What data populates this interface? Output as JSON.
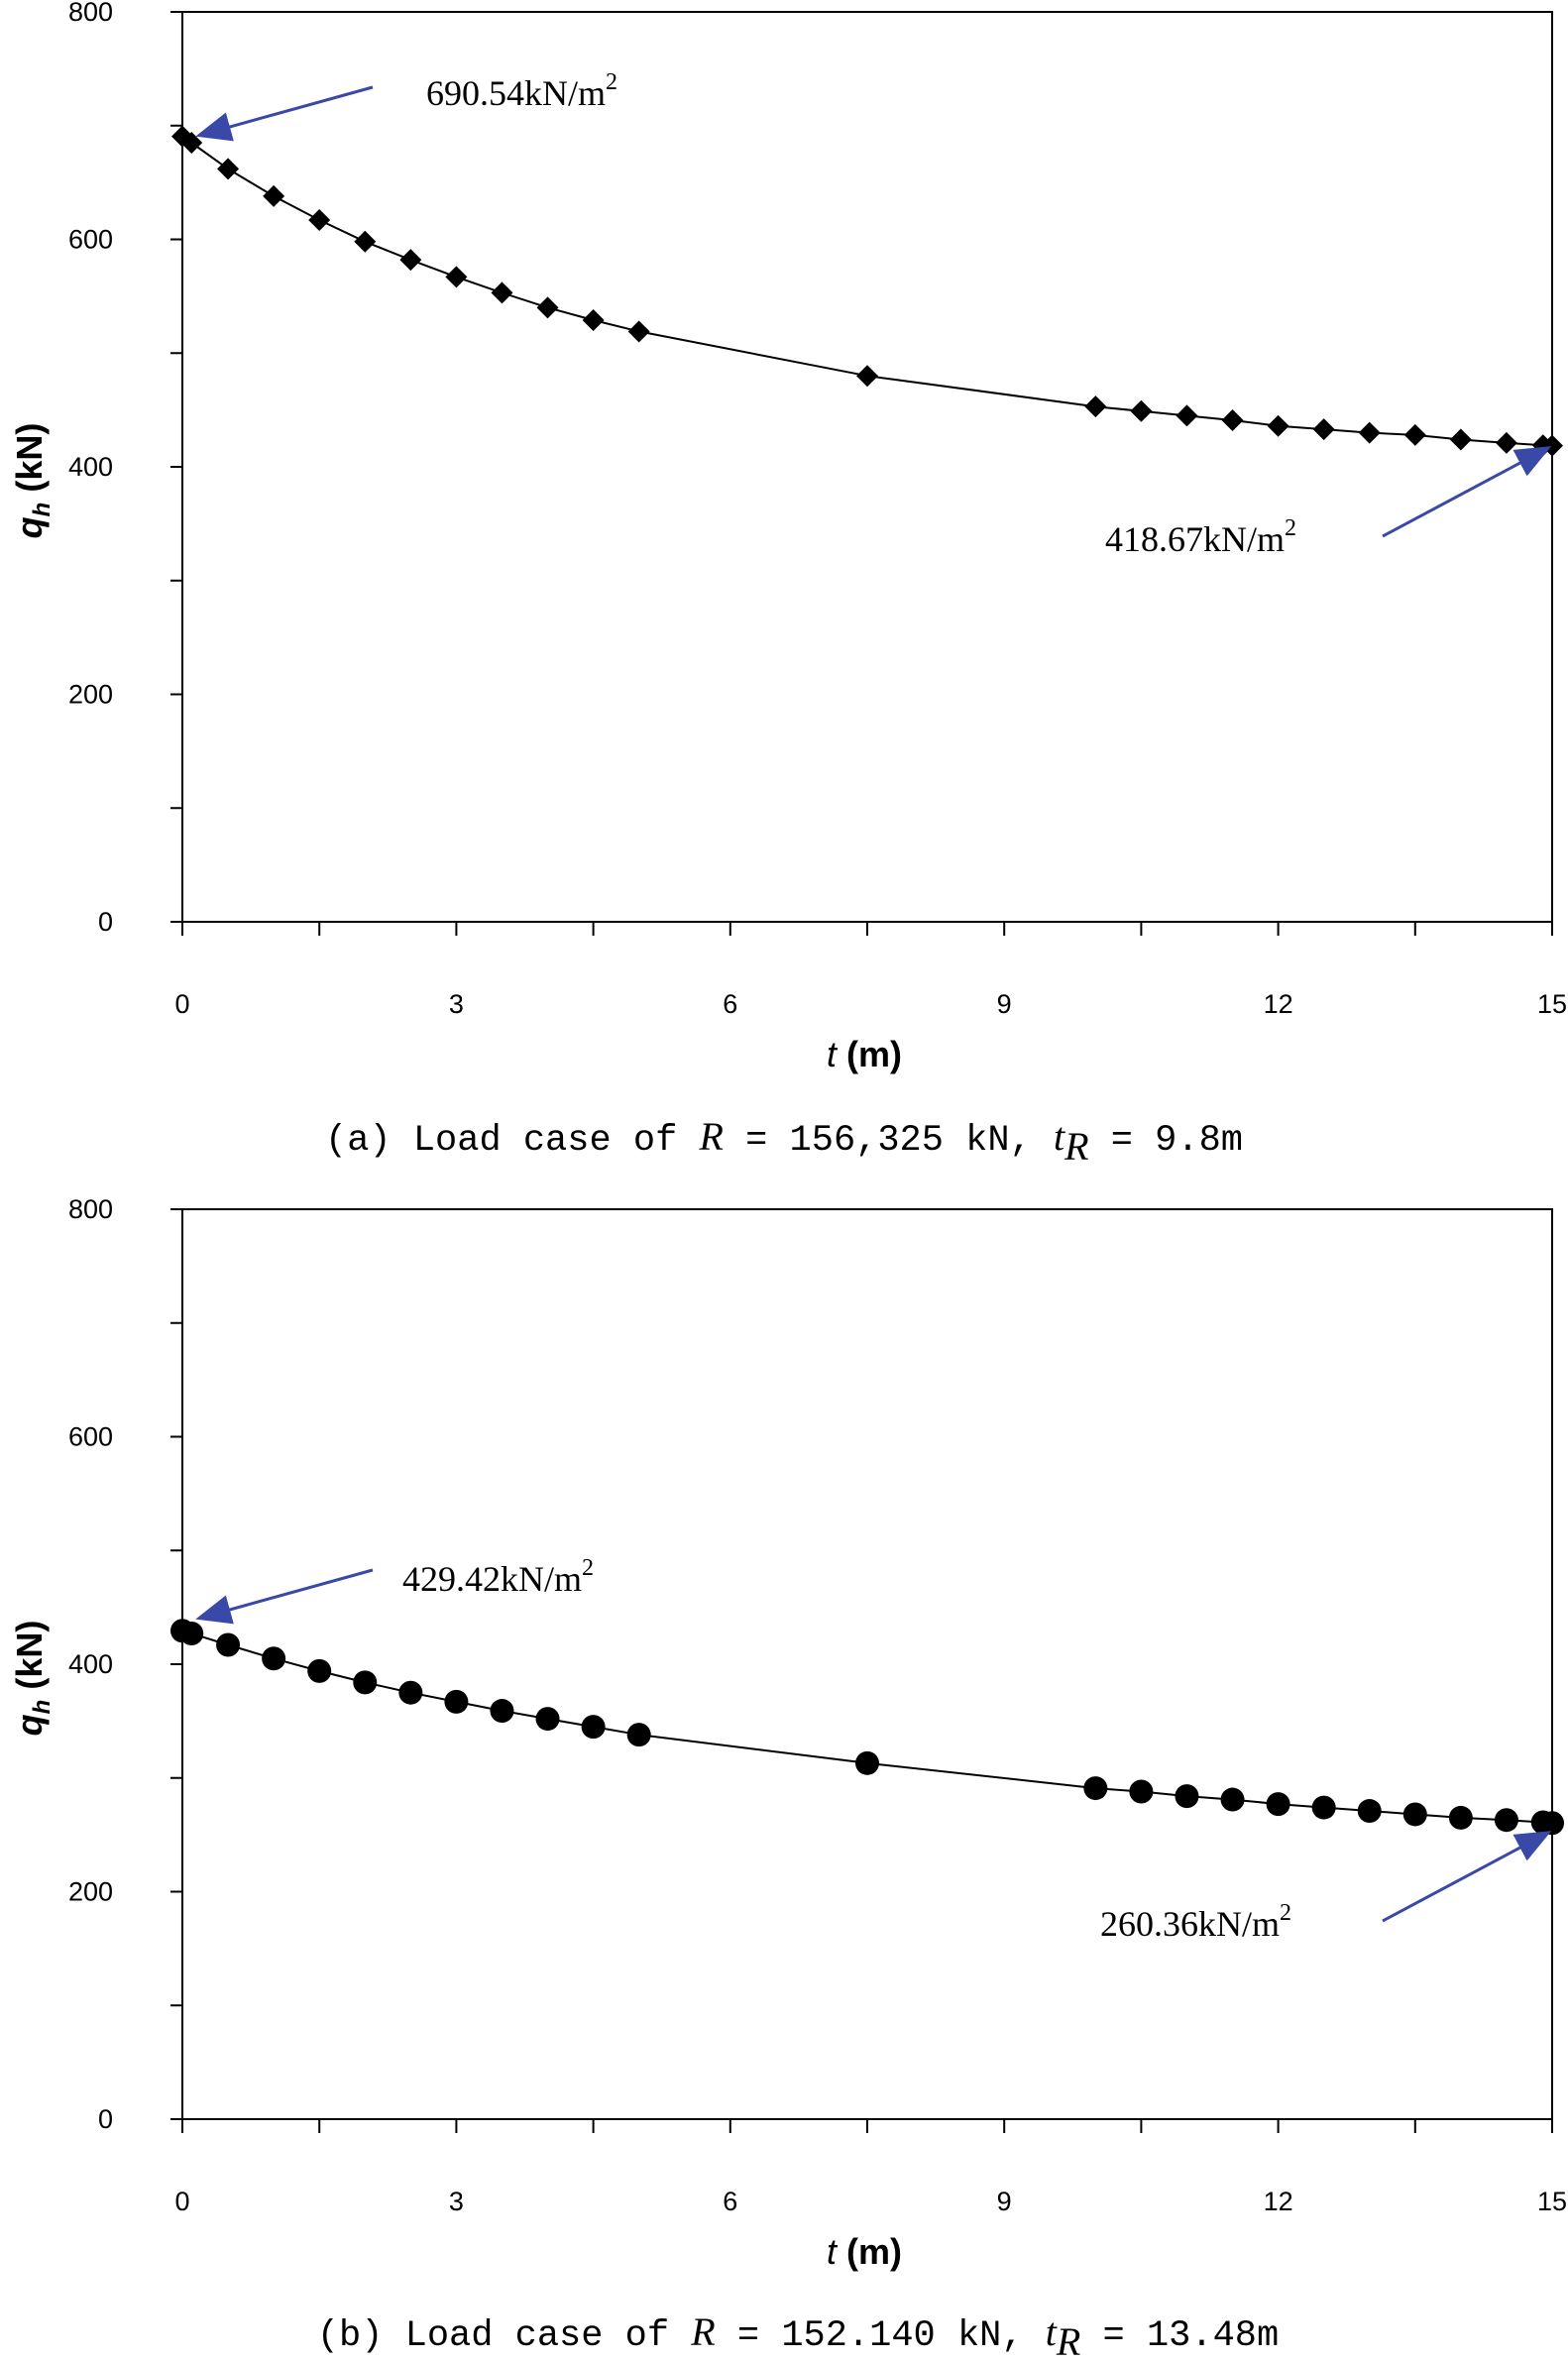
{
  "chart_data": [
    {
      "type": "line",
      "marker": "diamond",
      "x": [
        0,
        0.1,
        0.5,
        1,
        1.5,
        2,
        2.5,
        3,
        3.5,
        4,
        4.5,
        5,
        7.5,
        10,
        10.5,
        11,
        11.5,
        12,
        12.5,
        13,
        13.5,
        14,
        14.5,
        14.9,
        15
      ],
      "values": [
        690.54,
        685,
        662,
        638,
        617,
        598,
        582,
        567,
        553,
        540,
        529,
        519,
        480,
        453,
        449,
        445,
        441,
        436,
        433,
        430,
        428,
        424,
        421,
        419,
        418.67
      ],
      "xlim": [
        0,
        15
      ],
      "ylim": [
        0,
        800
      ],
      "x_ticks": [
        "0",
        "3",
        "6",
        "9",
        "12",
        "15"
      ],
      "y_ticks": [
        "0",
        "200",
        "400",
        "600",
        "800"
      ],
      "xlabel_var": "t",
      "xlabel_unit": "(m)",
      "ylabel_var": "q",
      "ylabel_sub": "h",
      "ylabel_unit": "(kN)",
      "annotations": [
        {
          "value": "690.54kN/m",
          "sup": "2"
        },
        {
          "value": "418.67kN/m",
          "sup": "2"
        }
      ],
      "caption": {
        "prefix": "(a) Load case of ",
        "R": "R",
        "mid": " = 156,325 kN, ",
        "t": "t",
        "sub": "R",
        "suffix": " = 9.8m"
      }
    },
    {
      "type": "line",
      "marker": "circle",
      "x": [
        0,
        0.1,
        0.5,
        1,
        1.5,
        2,
        2.5,
        3,
        3.5,
        4,
        4.5,
        5,
        7.5,
        10,
        10.5,
        11,
        11.5,
        12,
        12.5,
        13,
        13.5,
        14,
        14.5,
        14.9,
        15
      ],
      "values": [
        429.42,
        427,
        417,
        405,
        394,
        384,
        375,
        367,
        359,
        352,
        345,
        338,
        313,
        291,
        288,
        284,
        281,
        277,
        274,
        271,
        268,
        265,
        263,
        261,
        260.36
      ],
      "xlim": [
        0,
        15
      ],
      "ylim": [
        0,
        800
      ],
      "x_ticks": [
        "0",
        "3",
        "6",
        "9",
        "12",
        "15"
      ],
      "y_ticks": [
        "0",
        "200",
        "400",
        "600",
        "800"
      ],
      "xlabel_var": "t",
      "xlabel_unit": "(m)",
      "ylabel_var": "q",
      "ylabel_sub": "h",
      "ylabel_unit": "(kN)",
      "annotations": [
        {
          "value": "429.42kN/m",
          "sup": "2"
        },
        {
          "value": "260.36kN/m",
          "sup": "2"
        }
      ],
      "caption": {
        "prefix": "(b) Load case of ",
        "R": "R",
        "mid": " = 152.140 kN, ",
        "t": "t",
        "sub": "R",
        "suffix": " = 13.48m"
      }
    }
  ],
  "colors": {
    "series": "#000000",
    "arrow": "#3a48a8"
  }
}
